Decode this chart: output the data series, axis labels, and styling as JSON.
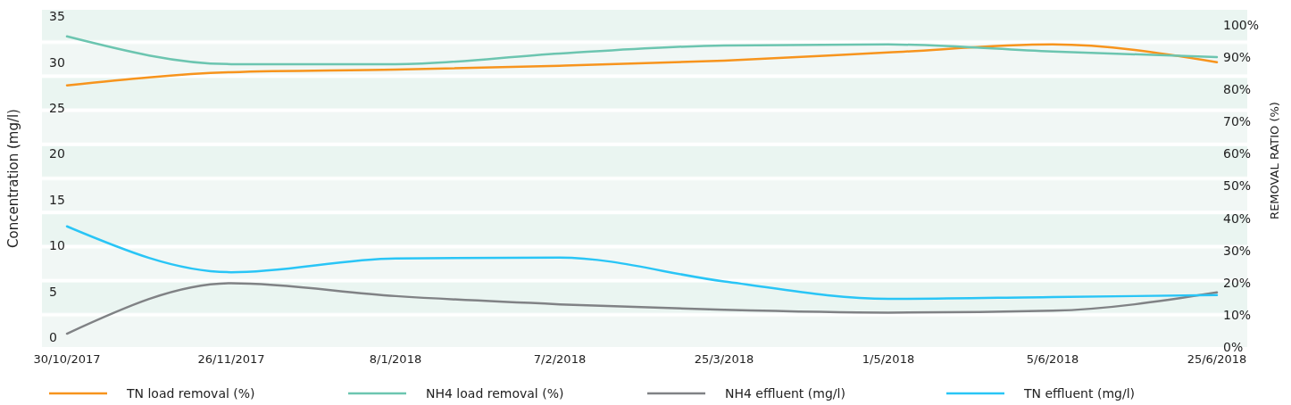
{
  "chart_data": {
    "type": "line",
    "ylabel": "Concentration (mg/l)",
    "y2label": "REMOVAL RATIO (%)",
    "categories": [
      "30/10/2017",
      "26/11/2017",
      "8/1/2018",
      "7/2/2018",
      "25/3/2018",
      "1/5/2018",
      "5/6/2018",
      "25/6/2018"
    ],
    "series": [
      {
        "name": "TN load removal (%)",
        "color": "#f7941d",
        "axis": "y2",
        "values": [
          81.2,
          85.3,
          86.1,
          87.3,
          88.9,
          91.4,
          93.9,
          88.4
        ]
      },
      {
        "name": "NH4 load removal (%)",
        "color": "#6cc5b0",
        "axis": "y2",
        "values": [
          96.4,
          87.8,
          87.8,
          91.1,
          93.6,
          93.9,
          91.7,
          90.0
        ]
      },
      {
        "name": "NH4 effluent (mg/l)",
        "color": "#808285",
        "values": [
          0.4,
          5.9,
          4.5,
          3.6,
          3.0,
          2.7,
          2.9,
          4.9
        ]
      },
      {
        "name": "TN effluent (mg/l)",
        "color": "#29c5f6",
        "values": [
          12.1,
          7.1,
          8.6,
          8.7,
          6.1,
          4.2,
          4.4,
          4.6
        ]
      }
    ],
    "ylim": [
      -1.25,
      35.9
    ],
    "yticks": [
      0,
      5,
      10,
      15,
      20,
      25,
      30,
      35
    ],
    "y2lim": [
      -0.5,
      105.2
    ],
    "y2ticks": [
      {
        "value": 0,
        "label": "0%"
      },
      {
        "value": 10,
        "label": "10%"
      },
      {
        "value": 20,
        "label": "20%"
      },
      {
        "value": 30,
        "label": "30%"
      },
      {
        "value": 40,
        "label": "40%"
      },
      {
        "value": 50,
        "label": "50%"
      },
      {
        "value": 60,
        "label": "60%"
      },
      {
        "value": 70,
        "label": "70%"
      },
      {
        "value": 80,
        "label": "80%"
      },
      {
        "value": 90,
        "label": "90%"
      },
      {
        "value": 100,
        "label": "100%"
      }
    ],
    "grid": "y2",
    "legend": "bottom",
    "marker": "none",
    "line_style": "solid"
  }
}
